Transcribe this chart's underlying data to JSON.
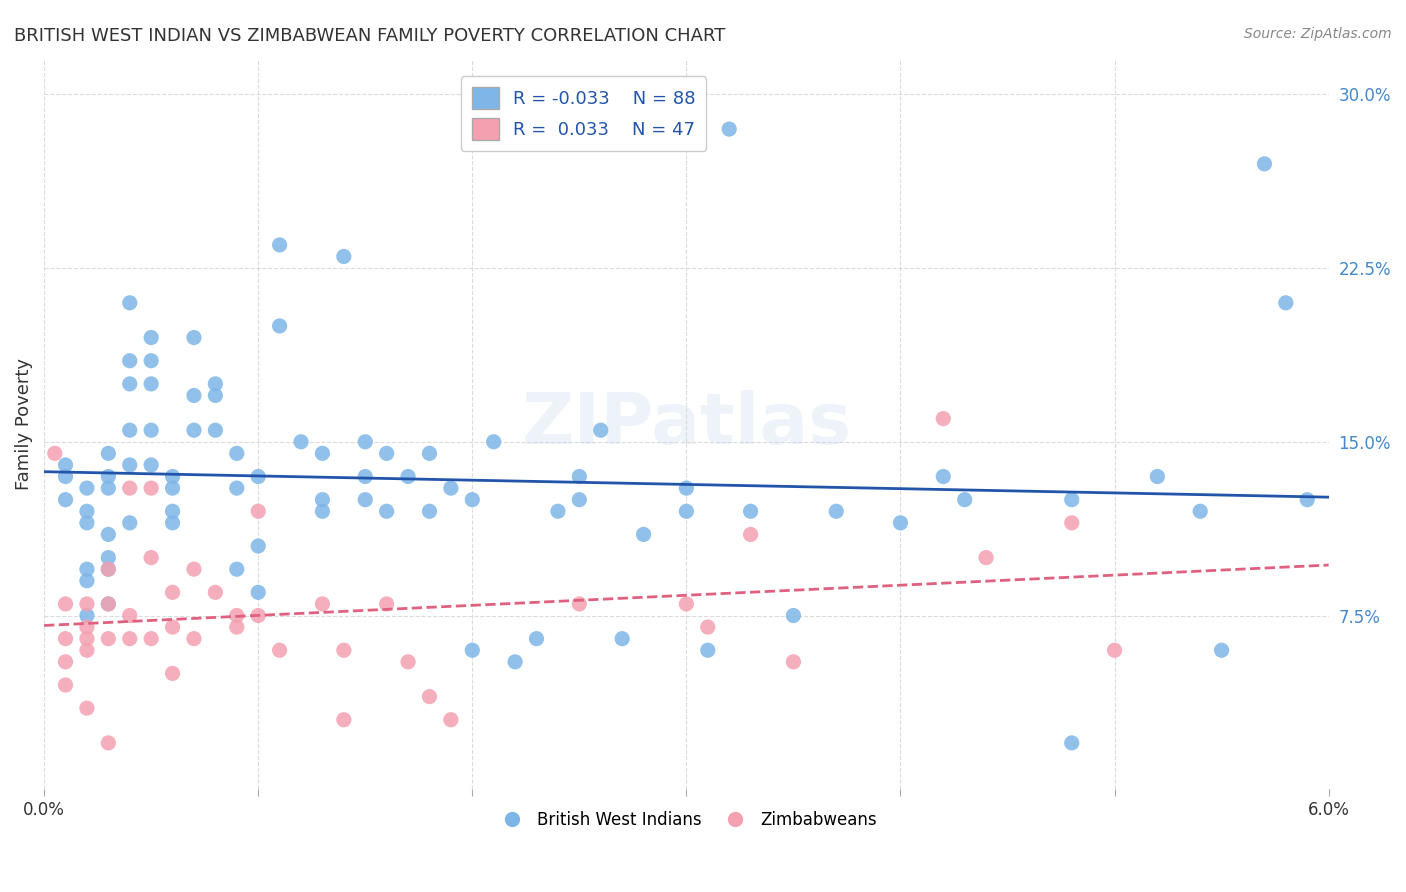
{
  "title": "BRITISH WEST INDIAN VS ZIMBABWEAN FAMILY POVERTY CORRELATION CHART",
  "source": "Source: ZipAtlas.com",
  "xlabel": "",
  "ylabel": "Family Poverty",
  "xlim": [
    0.0,
    0.06
  ],
  "ylim": [
    0.0,
    0.315
  ],
  "xticks": [
    0.0,
    0.01,
    0.02,
    0.03,
    0.04,
    0.05,
    0.06
  ],
  "xticklabels": [
    "0.0%",
    "",
    "",
    "",
    "",
    "",
    "6.0%"
  ],
  "yticks": [
    0.0,
    0.075,
    0.15,
    0.225,
    0.3
  ],
  "yticklabels": [
    "",
    "7.5%",
    "15.0%",
    "22.5%",
    "30.0%"
  ],
  "grid_color": "#cccccc",
  "background_color": "#ffffff",
  "blue_color": "#7EB6E8",
  "pink_color": "#F4A0B0",
  "blue_line_color": "#2255AA",
  "pink_line_color": "#E06080",
  "legend_blue_R": "R = -0.033",
  "legend_blue_N": "N = 88",
  "legend_pink_R": "R =  0.033",
  "legend_pink_N": "N = 47",
  "watermark": "ZIPatlas",
  "blue_scatter_x": [
    0.001,
    0.001,
    0.001,
    0.002,
    0.002,
    0.002,
    0.002,
    0.002,
    0.002,
    0.003,
    0.003,
    0.003,
    0.003,
    0.003,
    0.003,
    0.003,
    0.004,
    0.004,
    0.004,
    0.004,
    0.004,
    0.004,
    0.005,
    0.005,
    0.005,
    0.005,
    0.005,
    0.006,
    0.006,
    0.006,
    0.006,
    0.007,
    0.007,
    0.007,
    0.008,
    0.008,
    0.008,
    0.009,
    0.009,
    0.009,
    0.01,
    0.01,
    0.01,
    0.011,
    0.011,
    0.012,
    0.013,
    0.013,
    0.013,
    0.014,
    0.015,
    0.015,
    0.015,
    0.016,
    0.016,
    0.017,
    0.018,
    0.018,
    0.019,
    0.02,
    0.02,
    0.021,
    0.022,
    0.023,
    0.024,
    0.025,
    0.025,
    0.026,
    0.027,
    0.028,
    0.03,
    0.03,
    0.031,
    0.032,
    0.033,
    0.035,
    0.037,
    0.04,
    0.042,
    0.043,
    0.048,
    0.048,
    0.052,
    0.054,
    0.055,
    0.057,
    0.058,
    0.059
  ],
  "blue_scatter_y": [
    0.135,
    0.14,
    0.125,
    0.13,
    0.12,
    0.115,
    0.095,
    0.09,
    0.075,
    0.145,
    0.135,
    0.13,
    0.11,
    0.1,
    0.095,
    0.08,
    0.21,
    0.185,
    0.175,
    0.155,
    0.14,
    0.115,
    0.195,
    0.185,
    0.175,
    0.155,
    0.14,
    0.135,
    0.13,
    0.12,
    0.115,
    0.195,
    0.17,
    0.155,
    0.175,
    0.17,
    0.155,
    0.145,
    0.13,
    0.095,
    0.135,
    0.105,
    0.085,
    0.235,
    0.2,
    0.15,
    0.145,
    0.125,
    0.12,
    0.23,
    0.15,
    0.135,
    0.125,
    0.145,
    0.12,
    0.135,
    0.145,
    0.12,
    0.13,
    0.125,
    0.06,
    0.15,
    0.055,
    0.065,
    0.12,
    0.135,
    0.125,
    0.155,
    0.065,
    0.11,
    0.13,
    0.12,
    0.06,
    0.285,
    0.12,
    0.075,
    0.12,
    0.115,
    0.135,
    0.125,
    0.02,
    0.125,
    0.135,
    0.12,
    0.06,
    0.27,
    0.21,
    0.125
  ],
  "pink_scatter_x": [
    0.0005,
    0.001,
    0.001,
    0.001,
    0.001,
    0.002,
    0.002,
    0.002,
    0.002,
    0.002,
    0.003,
    0.003,
    0.003,
    0.003,
    0.004,
    0.004,
    0.004,
    0.005,
    0.005,
    0.005,
    0.006,
    0.006,
    0.006,
    0.007,
    0.007,
    0.008,
    0.009,
    0.009,
    0.01,
    0.01,
    0.011,
    0.013,
    0.014,
    0.014,
    0.016,
    0.017,
    0.018,
    0.019,
    0.025,
    0.03,
    0.031,
    0.033,
    0.035,
    0.042,
    0.044,
    0.048,
    0.05
  ],
  "pink_scatter_y": [
    0.145,
    0.08,
    0.065,
    0.055,
    0.045,
    0.08,
    0.07,
    0.065,
    0.06,
    0.035,
    0.095,
    0.08,
    0.065,
    0.02,
    0.13,
    0.075,
    0.065,
    0.13,
    0.1,
    0.065,
    0.085,
    0.07,
    0.05,
    0.095,
    0.065,
    0.085,
    0.075,
    0.07,
    0.12,
    0.075,
    0.06,
    0.08,
    0.06,
    0.03,
    0.08,
    0.055,
    0.04,
    0.03,
    0.08,
    0.08,
    0.07,
    0.11,
    0.055,
    0.16,
    0.1,
    0.115,
    0.06
  ]
}
